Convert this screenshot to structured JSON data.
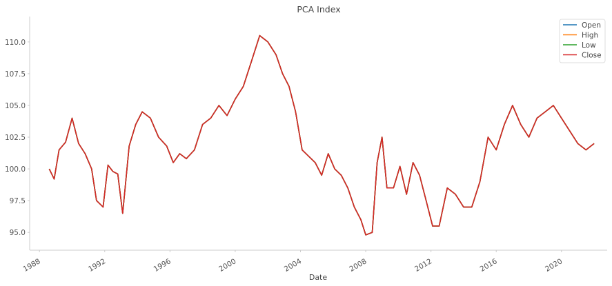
{
  "chart_data": {
    "type": "line",
    "title": "PCA Index",
    "xlabel": "Date",
    "ylabel": "",
    "xlim": [
      1987.4,
      2022.8
    ],
    "ylim": [
      93.6,
      112.0
    ],
    "x_ticks": [
      1988,
      1992,
      1996,
      2000,
      2004,
      2008,
      2012,
      2016,
      2020
    ],
    "x_tick_labels": [
      "1988",
      "1992",
      "1996",
      "2000",
      "2004",
      "2008",
      "2012",
      "2016",
      "2020"
    ],
    "y_ticks": [
      95.0,
      97.5,
      100.0,
      102.5,
      105.0,
      107.5,
      110.0
    ],
    "y_tick_labels": [
      "95.0",
      "97.5",
      "100.0",
      "102.5",
      "105.0",
      "107.5",
      "110.0"
    ],
    "grid": false,
    "legend_position": "top-right",
    "x": [
      1988.6,
      1988.9,
      1989.2,
      1989.6,
      1990.0,
      1990.4,
      1990.8,
      1991.2,
      1991.5,
      1991.9,
      1992.2,
      1992.5,
      1992.8,
      1993.1,
      1993.5,
      1993.9,
      1994.3,
      1994.8,
      1995.3,
      1995.8,
      1996.2,
      1996.6,
      1997.0,
      1997.5,
      1998.0,
      1998.5,
      1999.0,
      1999.5,
      2000.0,
      2000.5,
      2001.0,
      2001.5,
      2002.0,
      2002.5,
      2002.9,
      2003.3,
      2003.7,
      2004.1,
      2004.5,
      2004.9,
      2005.3,
      2005.7,
      2006.1,
      2006.5,
      2006.9,
      2007.3,
      2007.7,
      2008.0,
      2008.4,
      2008.7,
      2009.0,
      2009.3,
      2009.7,
      2010.1,
      2010.5,
      2010.9,
      2011.3,
      2011.7,
      2012.1,
      2012.5,
      2013.0,
      2013.5,
      2014.0,
      2014.5,
      2015.0,
      2015.5,
      2016.0,
      2016.5,
      2017.0,
      2017.5,
      2018.0,
      2018.5,
      2019.0,
      2019.5,
      2020.0,
      2020.5,
      2021.0,
      2021.5,
      2022.0
    ],
    "series": [
      {
        "name": "Open",
        "color": "#1f77b4",
        "values": [
          100.0,
          99.2,
          101.5,
          102.1,
          104.0,
          102.0,
          101.2,
          100.0,
          97.5,
          97.0,
          100.3,
          99.8,
          99.6,
          96.5,
          101.8,
          103.5,
          104.5,
          104.0,
          102.5,
          101.8,
          100.5,
          101.2,
          100.8,
          101.5,
          103.5,
          104.0,
          105.0,
          104.2,
          105.5,
          106.5,
          108.5,
          110.5,
          110.0,
          109.0,
          107.5,
          106.5,
          104.5,
          101.5,
          101.0,
          100.5,
          99.5,
          101.2,
          100.0,
          99.5,
          98.5,
          97.0,
          96.0,
          94.8,
          95.0,
          100.5,
          102.5,
          98.5,
          98.5,
          100.2,
          98.0,
          100.5,
          99.5,
          97.5,
          95.5,
          95.5,
          98.5,
          98.0,
          97.0,
          97.0,
          99.0,
          102.5,
          101.5,
          103.5,
          105.0,
          103.5,
          102.5,
          104.0,
          104.5,
          105.0,
          104.0,
          103.0,
          102.0,
          101.5,
          102.0
        ]
      },
      {
        "name": "High",
        "color": "#ff7f0e",
        "values": [
          100.0,
          99.2,
          101.5,
          102.1,
          104.0,
          102.0,
          101.2,
          100.0,
          97.5,
          97.0,
          100.3,
          99.8,
          99.6,
          96.5,
          101.8,
          103.5,
          104.5,
          104.0,
          102.5,
          101.8,
          100.5,
          101.2,
          100.8,
          101.5,
          103.5,
          104.0,
          105.0,
          104.2,
          105.5,
          106.5,
          108.5,
          110.5,
          110.0,
          109.0,
          107.5,
          106.5,
          104.5,
          101.5,
          101.0,
          100.5,
          99.5,
          101.2,
          100.0,
          99.5,
          98.5,
          97.0,
          96.0,
          94.8,
          95.0,
          100.5,
          102.5,
          98.5,
          98.5,
          100.2,
          98.0,
          100.5,
          99.5,
          97.5,
          95.5,
          95.5,
          98.5,
          98.0,
          97.0,
          97.0,
          99.0,
          102.5,
          101.5,
          103.5,
          105.0,
          103.5,
          102.5,
          104.0,
          104.5,
          105.0,
          104.0,
          103.0,
          102.0,
          101.5,
          102.0
        ]
      },
      {
        "name": "Low",
        "color": "#2ca02c",
        "values": [
          100.0,
          99.2,
          101.5,
          102.1,
          104.0,
          102.0,
          101.2,
          100.0,
          97.5,
          97.0,
          100.3,
          99.8,
          99.6,
          96.5,
          101.8,
          103.5,
          104.5,
          104.0,
          102.5,
          101.8,
          100.5,
          101.2,
          100.8,
          101.5,
          103.5,
          104.0,
          105.0,
          104.2,
          105.5,
          106.5,
          108.5,
          110.5,
          110.0,
          109.0,
          107.5,
          106.5,
          104.5,
          101.5,
          101.0,
          100.5,
          99.5,
          101.2,
          100.0,
          99.5,
          98.5,
          97.0,
          96.0,
          94.8,
          95.0,
          100.5,
          102.5,
          98.5,
          98.5,
          100.2,
          98.0,
          100.5,
          99.5,
          97.5,
          95.5,
          95.5,
          98.5,
          98.0,
          97.0,
          97.0,
          99.0,
          102.5,
          101.5,
          103.5,
          105.0,
          103.5,
          102.5,
          104.0,
          104.5,
          105.0,
          104.0,
          103.0,
          102.0,
          101.5,
          102.0
        ]
      },
      {
        "name": "Close",
        "color": "#d62728",
        "values": [
          100.0,
          99.2,
          101.5,
          102.1,
          104.0,
          102.0,
          101.2,
          100.0,
          97.5,
          97.0,
          100.3,
          99.8,
          99.6,
          96.5,
          101.8,
          103.5,
          104.5,
          104.0,
          102.5,
          101.8,
          100.5,
          101.2,
          100.8,
          101.5,
          103.5,
          104.0,
          105.0,
          104.2,
          105.5,
          106.5,
          108.5,
          110.5,
          110.0,
          109.0,
          107.5,
          106.5,
          104.5,
          101.5,
          101.0,
          100.5,
          99.5,
          101.2,
          100.0,
          99.5,
          98.5,
          97.0,
          96.0,
          94.8,
          95.0,
          100.5,
          102.5,
          98.5,
          98.5,
          100.2,
          98.0,
          100.5,
          99.5,
          97.5,
          95.5,
          95.5,
          98.5,
          98.0,
          97.0,
          97.0,
          99.0,
          102.5,
          101.5,
          103.5,
          105.0,
          103.5,
          102.5,
          104.0,
          104.5,
          105.0,
          104.0,
          103.0,
          102.0,
          101.5,
          102.0
        ]
      }
    ]
  }
}
